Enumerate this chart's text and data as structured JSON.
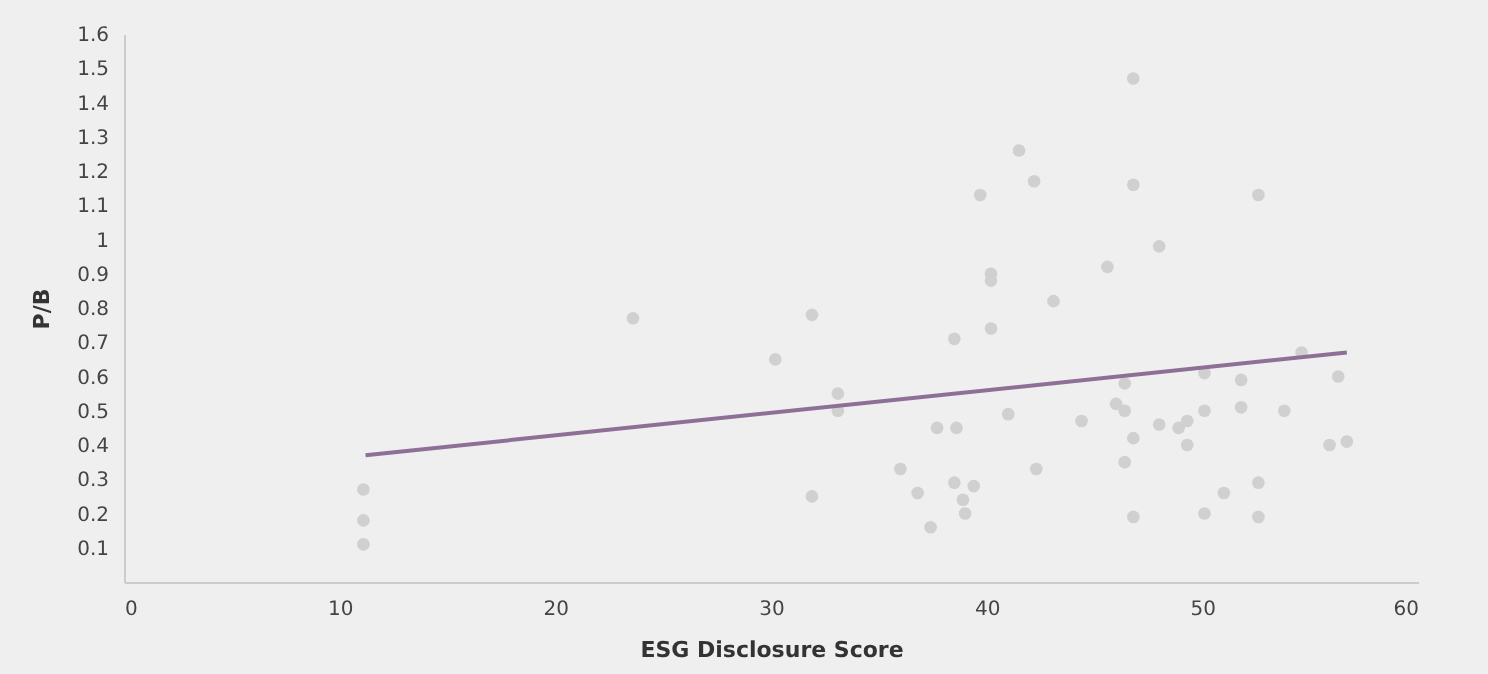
{
  "chart_data": {
    "type": "scatter",
    "xlabel": "ESG Disclosure Score",
    "ylabel": "P/B",
    "xlim": [
      0,
      60
    ],
    "xticks": [
      0,
      10,
      20,
      30,
      40,
      50,
      60
    ],
    "ylim": [
      0,
      1.6
    ],
    "yticks": [
      0.1,
      0.2,
      0.3,
      0.4,
      0.5,
      0.6,
      0.7,
      0.8,
      0.9,
      1,
      1.1,
      1.2,
      1.3,
      1.4,
      1.5,
      1.6
    ],
    "grid": false,
    "series": [
      {
        "marker": "circle",
        "color": "#d0d0d0",
        "x": [
          11.1,
          11.1,
          11.1,
          23.6,
          31.9,
          30.2,
          33.1,
          33.1,
          31.9,
          36.0,
          36.8,
          37.4,
          37.7,
          38.6,
          38.5,
          39.4,
          38.9,
          39.0,
          38.5,
          40.2,
          40.2,
          40.2,
          39.7,
          41.5,
          42.2,
          43.1,
          41.0,
          46.8,
          46.8,
          52.6,
          48.0,
          45.6,
          42.3,
          44.4,
          46.0,
          46.4,
          46.4,
          46.8,
          46.4,
          46.8,
          48.0,
          48.9,
          49.3,
          49.3,
          50.1,
          50.1,
          50.1,
          51.0,
          51.8,
          51.8,
          52.6,
          52.6,
          53.8,
          54.6,
          56.3,
          55.9,
          56.7
        ],
        "values": [
          0.11,
          0.18,
          0.27,
          0.77,
          0.78,
          0.65,
          0.55,
          0.5,
          0.25,
          0.33,
          0.26,
          0.16,
          0.45,
          0.45,
          0.29,
          0.28,
          0.24,
          0.2,
          0.71,
          0.74,
          0.9,
          0.88,
          1.13,
          1.26,
          1.17,
          0.82,
          0.49,
          1.47,
          1.16,
          1.13,
          0.98,
          0.92,
          0.33,
          0.47,
          0.52,
          0.5,
          0.58,
          0.42,
          0.35,
          0.19,
          0.46,
          0.45,
          0.47,
          0.4,
          0.61,
          0.5,
          0.2,
          0.26,
          0.59,
          0.51,
          0.29,
          0.19,
          0.5,
          0.67,
          0.6,
          0.4,
          0.41
        ]
      },
      {
        "type": "line",
        "color": "#8e6f96",
        "x": [
          11.2,
          56.7
        ],
        "values": [
          0.37,
          0.67
        ],
        "line_style": "solid"
      }
    ]
  }
}
